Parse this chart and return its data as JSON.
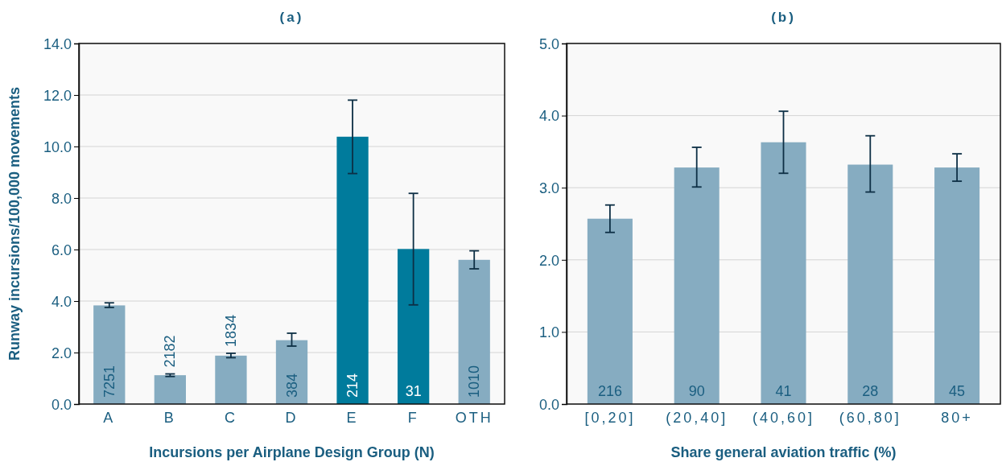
{
  "chart_data": [
    {
      "type": "bar",
      "title": "(a)",
      "xlabel": "Incursions per Airplane Design Group (N)",
      "ylabel": "Runway incursions/100,000 movements",
      "categories": [
        "A",
        "B",
        "C",
        "D",
        "E",
        "F",
        "OTH"
      ],
      "values": [
        3.83,
        1.12,
        1.88,
        2.48,
        10.38,
        6.02,
        5.6
      ],
      "errors": [
        [
          3.75,
          3.93
        ],
        [
          1.07,
          1.17
        ],
        [
          1.8,
          1.97
        ],
        [
          2.25,
          2.75
        ],
        [
          8.95,
          11.8
        ],
        [
          3.85,
          8.18
        ],
        [
          5.25,
          5.95
        ]
      ],
      "colors": [
        "#86acc1",
        "#86acc1",
        "#86acc1",
        "#86acc1",
        "#007b9c",
        "#007b9c",
        "#86acc1"
      ],
      "annotations": [
        "7251",
        "2182",
        "1834",
        "384",
        "214",
        "31",
        "1010"
      ],
      "ylim": [
        0,
        14
      ],
      "yticks": [
        {
          "value": 0,
          "label": "0.0"
        },
        {
          "value": 2,
          "label": "2.0"
        },
        {
          "value": 4,
          "label": "4.0"
        },
        {
          "value": 6,
          "label": "6.0"
        },
        {
          "value": 8,
          "label": "8.0"
        },
        {
          "value": 10,
          "label": "10.0"
        },
        {
          "value": 12,
          "label": "12.0"
        },
        {
          "value": 14,
          "label": "14.0"
        }
      ],
      "grid": "y"
    },
    {
      "type": "bar",
      "title": "(b)",
      "xlabel": "Share general aviation traffic (%)",
      "categories": [
        "[0,20]",
        "(20,40]",
        "(40,60]",
        "(60,80]",
        "80+"
      ],
      "values": [
        2.57,
        3.28,
        3.63,
        3.32,
        3.28
      ],
      "errors": [
        [
          2.38,
          2.76
        ],
        [
          3.01,
          3.56
        ],
        [
          3.2,
          4.06
        ],
        [
          2.94,
          3.72
        ],
        [
          3.09,
          3.47
        ]
      ],
      "color": "#86acc1",
      "annotations": [
        "216",
        "90",
        "41",
        "28",
        "45"
      ],
      "ylim": [
        0,
        5
      ],
      "yticks": [
        {
          "value": 0,
          "label": "0.0"
        },
        {
          "value": 1,
          "label": "1.0"
        },
        {
          "value": 2,
          "label": "2.0"
        },
        {
          "value": 3,
          "label": "3.0"
        },
        {
          "value": 4,
          "label": "4.0"
        },
        {
          "value": 5,
          "label": "5.0"
        }
      ],
      "grid": "y"
    }
  ]
}
